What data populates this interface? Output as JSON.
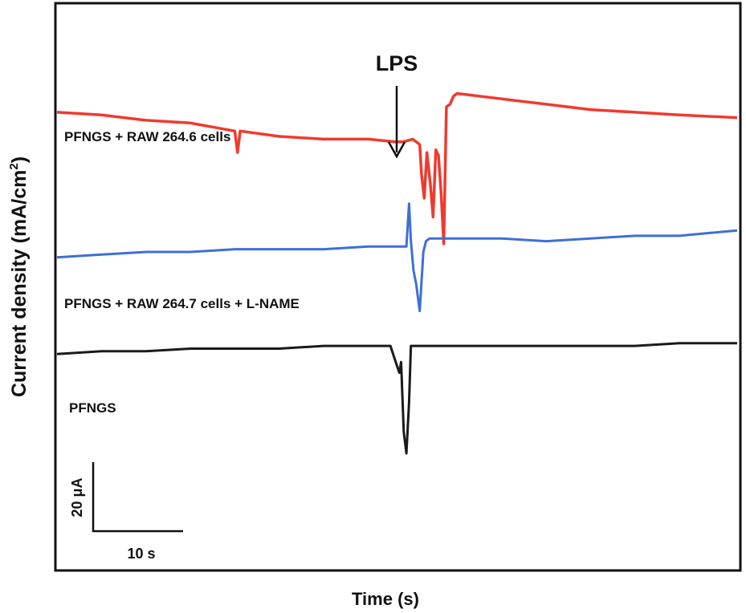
{
  "chart_data": {
    "type": "line",
    "xlabel": "Time (s)",
    "ylabel": "Current density (mA/cm²)",
    "ylabel_main": "Current density (mA/cm",
    "ylabel_sup": "2",
    "ylabel_end": ")",
    "annotation": {
      "text": "LPS",
      "x": 40.5
    },
    "scale_bar": {
      "x_label": "10 s",
      "x_value": 10,
      "y_label": "20 μA",
      "y_value": 20
    },
    "xlim": [
      0,
      76.5
    ],
    "ylim": [
      -130,
      80
    ],
    "series": [
      {
        "name": "PFNGS + RAW 264.6 cells",
        "color": "#f03a2e",
        "x": [
          0,
          5,
          10,
          15,
          20,
          20.3,
          20.6,
          25,
          30,
          35,
          38,
          39,
          40,
          40.8,
          41,
          41.3,
          41.6,
          42,
          42.3,
          42.6,
          42.9,
          43.2,
          43.5,
          43.8,
          44.2,
          44.6,
          45,
          50,
          55,
          60,
          65,
          70,
          76.5
        ],
        "y": [
          40,
          39,
          37,
          36,
          33,
          25,
          33,
          31,
          30,
          30,
          29,
          29,
          30,
          28,
          17,
          8,
          25,
          13,
          1,
          26,
          24,
          10,
          -9,
          42,
          43,
          46,
          47,
          45,
          43,
          41,
          40,
          39,
          38
        ]
      },
      {
        "name": "PFNGS + RAW 264.7 cells + L-NAME",
        "color": "#3f6fd6",
        "x": [
          0,
          5,
          10,
          15,
          20,
          25,
          30,
          35,
          38,
          39.3,
          39.6,
          39.8,
          40.1,
          40.4,
          40.8,
          41.2,
          41.5,
          41.9,
          42.3,
          45,
          50,
          55,
          60,
          65,
          70,
          76.5
        ],
        "y": [
          -14,
          -13,
          -12,
          -12,
          -11,
          -11,
          -11,
          -10,
          -10,
          -10,
          6,
          -8,
          -19,
          -24,
          -34,
          -12,
          -8,
          -7,
          -7,
          -7,
          -7,
          -8,
          -7,
          -6,
          -6,
          -4
        ]
      },
      {
        "name": "PFNGS",
        "color": "#1a1a1a",
        "x": [
          0,
          5,
          10,
          15,
          20,
          25,
          30,
          35,
          37.5,
          38,
          38.5,
          38.7,
          39,
          39.3,
          39.6,
          39.8,
          40.2,
          45,
          50,
          55,
          60,
          65,
          70,
          76.5
        ],
        "y": [
          -50,
          -49,
          -49,
          -48,
          -48,
          -48,
          -47,
          -47,
          -47,
          -52,
          -57,
          -53,
          -79,
          -87,
          -68,
          -47,
          -47,
          -47,
          -47,
          -47,
          -47,
          -47,
          -46,
          -46
        ]
      }
    ]
  }
}
